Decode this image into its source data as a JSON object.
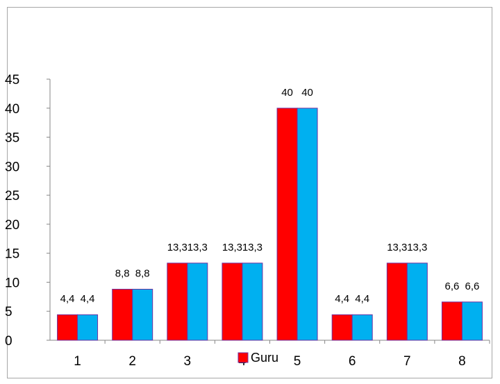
{
  "chart_data": {
    "type": "bar",
    "title": "",
    "xlabel": "",
    "ylabel": "",
    "categories": [
      "1",
      "2",
      "3",
      "4",
      "5",
      "6",
      "7",
      "8"
    ],
    "series": [
      {
        "name": "Guru",
        "color": "#ff0000",
        "values": [
          4.4,
          8.8,
          13.3,
          13.3,
          40,
          4.4,
          13.3,
          6.6
        ],
        "labels": [
          "4,4",
          "8,8",
          "13,3",
          "13,3",
          "40",
          "4,4",
          "13,3",
          "6,6"
        ]
      },
      {
        "color": "#00b0f0",
        "values": [
          4.4,
          8.8,
          13.3,
          13.3,
          40,
          4.4,
          13.3,
          6.6
        ],
        "labels": [
          "4,4",
          "8,8",
          "13,3",
          "13,3",
          "40",
          "4,4",
          "13,3",
          "6,6"
        ]
      }
    ],
    "y_ticks": [
      "0",
      "5",
      "10",
      "15",
      "20",
      "25",
      "30",
      "35",
      "40",
      "45"
    ],
    "ylim": [
      0,
      45
    ],
    "grid": false,
    "legend": "bottom-center"
  }
}
